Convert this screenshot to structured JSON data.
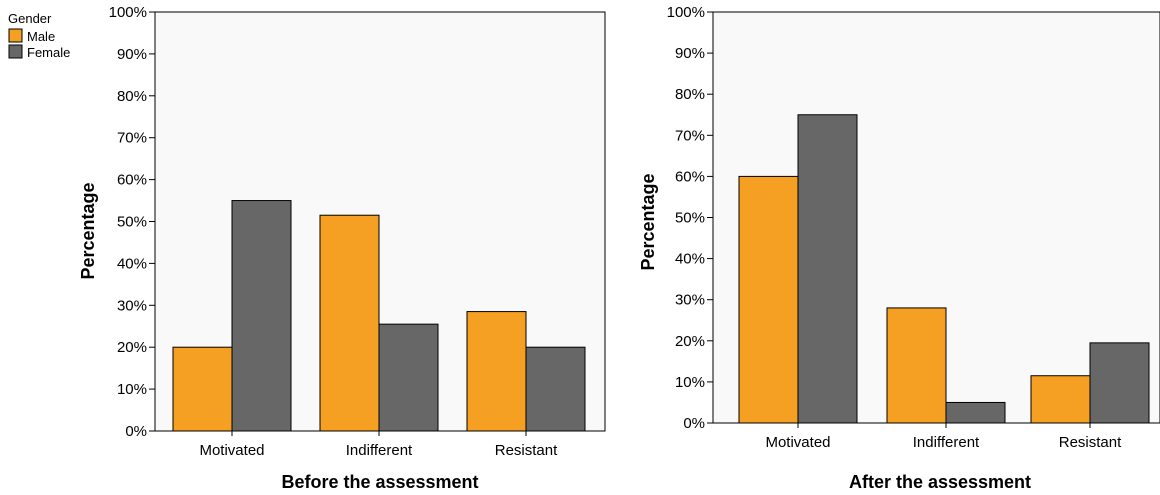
{
  "legend": {
    "title": "Gender",
    "entries": [
      {
        "label": "Male",
        "color": "#f5a023"
      },
      {
        "label": "Female",
        "color": "#666766"
      }
    ]
  },
  "chart_data": [
    {
      "type": "bar",
      "xlabel": "Before the assessment",
      "ylabel": "Percentage",
      "categories": [
        "Motivated",
        "Indifferent",
        "Resistant"
      ],
      "ylim": [
        0,
        100
      ],
      "yticks": [
        "0%",
        "10%",
        "20%",
        "30%",
        "40%",
        "50%",
        "60%",
        "70%",
        "80%",
        "90%",
        "100%"
      ],
      "series": [
        {
          "name": "Male",
          "color": "#f5a023",
          "values": [
            20,
            51.5,
            28.5
          ]
        },
        {
          "name": "Female",
          "color": "#666766",
          "values": [
            55,
            25.5,
            20
          ]
        }
      ],
      "grid": false,
      "legend_position": "top-left"
    },
    {
      "type": "bar",
      "xlabel": "After the assessment",
      "ylabel": "Percentage",
      "categories": [
        "Motivated",
        "Indifferent",
        "Resistant"
      ],
      "ylim": [
        0,
        100
      ],
      "yticks": [
        "0%",
        "10%",
        "20%",
        "30%",
        "40%",
        "50%",
        "60%",
        "70%",
        "80%",
        "90%",
        "100%"
      ],
      "series": [
        {
          "name": "Male",
          "color": "#f5a023",
          "values": [
            60,
            28,
            11.5
          ]
        },
        {
          "name": "Female",
          "color": "#666766",
          "values": [
            75,
            5,
            19.5
          ]
        }
      ],
      "grid": false
    }
  ]
}
